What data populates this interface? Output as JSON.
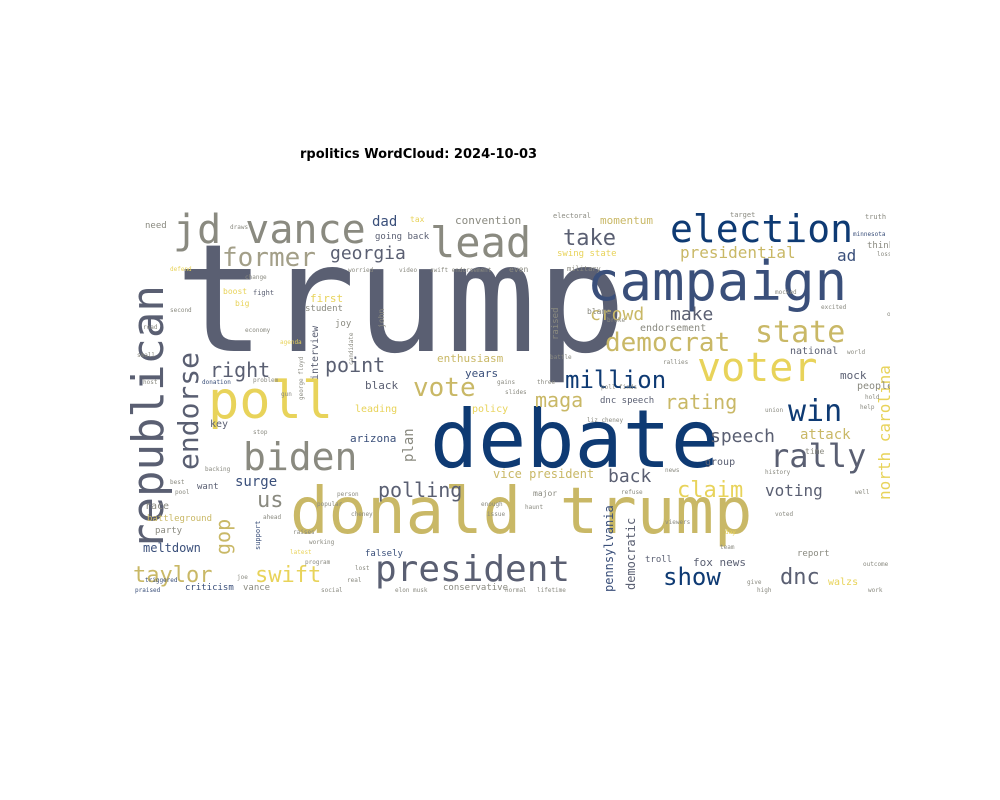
{
  "title": "rpolitics WordCloud: 2024-10-03",
  "colors": {
    "slate": "#5a5f72",
    "gold": "#c9b866",
    "yellow": "#e8d35a",
    "navy": "#0e3a73",
    "gray": "#8a8a80",
    "taupe": "#a39f88",
    "blue": "#3a4f7a"
  },
  "words": {
    "trump": "trump",
    "debate": "debate",
    "donald_trump": "donald trump",
    "campaign": "campaign",
    "poll": "poll",
    "republican": "republican",
    "jd_vance": "jd vance",
    "lead": "lead",
    "election": "election",
    "voter": "voter",
    "biden": "biden",
    "president": "president",
    "state": "state",
    "democrat": "democrat",
    "endorse": "endorse",
    "former": "former",
    "vote": "vote",
    "rally": "rally",
    "win": "win",
    "taylor": "taylor",
    "swift": "swift",
    "million": "million",
    "show": "show",
    "dnc": "dnc",
    "take": "take",
    "claim": "claim",
    "polling": "polling",
    "point": "point",
    "right": "right",
    "maga": "maga",
    "rating": "rating",
    "north_carolina": "north carolina",
    "presidential": "presidential",
    "georgia": "georgia",
    "crowd": "crowd",
    "make": "make",
    "speech": "speech",
    "back": "back",
    "voting": "voting",
    "gop": "gop",
    "us": "us",
    "ad": "ad",
    "dad": "dad",
    "surge": "surge",
    "attack": "attack",
    "momentum": "momentum",
    "convention": "convention",
    "arizona": "arizona",
    "vice_president": "vice president",
    "fox_news": "fox news",
    "meltdown": "meltdown",
    "enthusiasm": "enthusiasm",
    "mock": "mock",
    "people": "people",
    "national": "national",
    "endorsement": "endorsement",
    "walzs": "walzs",
    "pennsylvania": "pennsylvania",
    "democratic": "democratic",
    "years": "years",
    "black": "black",
    "leading": "leading",
    "policy": "policy",
    "first": "first",
    "key": "key",
    "race": "race",
    "want": "want",
    "battleground": "battleground",
    "party": "party",
    "criticism": "criticism",
    "vance": "vance",
    "troll": "troll",
    "report": "report",
    "interview": "interview",
    "plan": "plan",
    "swing_state": "swing state",
    "dnc_speech": "dnc speech",
    "going_back": "going back",
    "need": "need",
    "group": "group",
    "conservative": "conservative",
    "falsely": "falsely",
    "raised": "raised",
    "joy": "joy",
    "student": "student",
    "think": "think",
    "time": "time",
    "boost": "boost",
    "big": "big",
    "fight": "fight",
    "even": "even",
    "military": "military",
    "tax": "tax",
    "electoral": "electoral",
    "target": "target",
    "truth": "truth",
    "minnesota": "minnesota",
    "blame": "blame",
    "broke": "broke",
    "battle": "battle",
    "rallies": "rallies",
    "support": "support",
    "major": "major",
    "elon_musk": "elon musk",
    "lifetime": "lifetime",
    "john": "john",
    "candidate": "candidate",
    "swift_endorsement": "swift endorsement",
    "raises": "raises",
    "working": "working",
    "latest": "latest",
    "praised": "praised",
    "triggered": "triggered",
    "refuse": "refuse",
    "liz_cheney": "liz cheney",
    "poll_finds": "poll finds",
    "viewers": "viewers",
    "high": "high",
    "give": "give",
    "work": "work",
    "day": "day",
    "social": "social",
    "real": "real",
    "lost": "lost",
    "person": "person",
    "popular": "popular",
    "program": "program",
    "ahead": "ahead",
    "cheney": "cheney",
    "haunt": "haunt",
    "enough": "enough",
    "issue": "issue",
    "slides": "slides",
    "three": "three",
    "gains": "gains",
    "excited": "excited",
    "one": "one",
    "hold": "hold",
    "world": "world",
    "union": "union",
    "help": "help",
    "second": "second",
    "road": "road",
    "small": "small",
    "host": "host",
    "donation": "donation",
    "problem": "problem",
    "gun": "gun",
    "stop": "stop",
    "backing": "backing",
    "best": "best",
    "pool": "pool",
    "defend": "defend",
    "change": "change",
    "economy": "economy",
    "lie": "lie",
    "draws": "draws",
    "worried": "worried",
    "video": "video",
    "george_floyd": "george floyd",
    "agenda": "agenda",
    "loss": "loss",
    "voted": "voted",
    "outcome": "outcome",
    "mocked": "mocked",
    "news": "news",
    "team": "team",
    "history": "history",
    "say": "say",
    "also": "also",
    "well": "well",
    "joe": "joe",
    "normal": "normal",
    "lie_down": "lie down",
    "race_against": "race against",
    "support_campaign": "support campaign",
    "man": "man",
    "since": "since"
  }
}
